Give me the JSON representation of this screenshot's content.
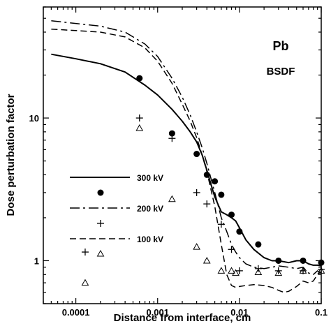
{
  "chart_data": {
    "type": "line",
    "xlabel": "Distance from interface, cm",
    "ylabel": "Dose perturbation factor",
    "xscale": "log",
    "yscale": "log",
    "xlim": [
      4e-05,
      0.1
    ],
    "ylim": [
      0.5,
      60
    ],
    "x_ticks": [
      0.0001,
      0.001,
      0.01,
      0.1
    ],
    "x_tick_labels": [
      "0.0001",
      "0.001",
      "0.01",
      "0.1"
    ],
    "y_ticks": [
      1,
      10
    ],
    "y_tick_labels": [
      "1",
      "10"
    ],
    "grid": false,
    "legend_position": "left-center",
    "annotations": [
      "Pb",
      "BSDF"
    ],
    "series": [
      {
        "name": "300 kV",
        "kind": "line",
        "style": "solid",
        "x": [
          5e-05,
          0.0001,
          0.0002,
          0.0004,
          0.0007,
          0.001,
          0.0015,
          0.002,
          0.0025,
          0.003,
          0.0035,
          0.004,
          0.0045,
          0.005,
          0.006,
          0.007,
          0.008,
          0.009,
          0.01,
          0.012,
          0.015,
          0.02,
          0.025,
          0.03,
          0.04,
          0.05,
          0.06,
          0.07,
          0.08,
          0.09,
          0.1
        ],
        "values": [
          28,
          26,
          24,
          21,
          17,
          14.5,
          11.5,
          9.5,
          8,
          6.8,
          5.5,
          4.3,
          3.4,
          2.8,
          2.2,
          2.1,
          2.0,
          1.9,
          1.7,
          1.4,
          1.2,
          1.05,
          1.0,
          1.0,
          0.97,
          1.0,
          1.0,
          0.95,
          0.93,
          0.93,
          0.92
        ]
      },
      {
        "name": "300 kV",
        "kind": "points",
        "marker": "filled-circle",
        "x": [
          0.0006,
          0.0015,
          0.003,
          0.004,
          0.005,
          0.006,
          0.008,
          0.01,
          0.017,
          0.03,
          0.06,
          0.1
        ],
        "values": [
          19,
          7.8,
          5.6,
          4.0,
          3.6,
          2.9,
          2.1,
          1.6,
          1.3,
          1.0,
          1.0,
          0.97
        ]
      },
      {
        "name": "200 kV",
        "kind": "line",
        "style": "dash-dot",
        "x": [
          5e-05,
          0.0001,
          0.0002,
          0.0004,
          0.0007,
          0.001,
          0.0015,
          0.002,
          0.0025,
          0.003,
          0.0035,
          0.004,
          0.005,
          0.006,
          0.007,
          0.008,
          0.009,
          0.01,
          0.012,
          0.015,
          0.02,
          0.025,
          0.03,
          0.04,
          0.05,
          0.06,
          0.07,
          0.08,
          0.09,
          0.1
        ],
        "values": [
          48,
          46,
          44,
          40,
          33,
          27,
          19,
          14,
          10.5,
          8,
          6.2,
          4.8,
          3.0,
          2.0,
          1.6,
          1.3,
          1.15,
          1.05,
          0.95,
          0.9,
          0.88,
          0.9,
          0.92,
          0.9,
          0.88,
          0.9,
          0.82,
          0.8,
          0.85,
          0.82
        ]
      },
      {
        "name": "200 kV",
        "kind": "points",
        "marker": "plus",
        "x": [
          0.00013,
          0.0006,
          0.0015,
          0.003,
          0.004,
          0.006,
          0.008,
          0.01,
          0.017,
          0.03,
          0.06,
          0.1
        ],
        "values": [
          1.15,
          10.0,
          7.2,
          3.0,
          2.5,
          1.8,
          1.2,
          0.85,
          0.88,
          0.85,
          0.85,
          0.87
        ]
      },
      {
        "name": "100 kV",
        "kind": "line",
        "style": "dashed",
        "x": [
          5e-05,
          0.0001,
          0.0002,
          0.0004,
          0.0007,
          0.001,
          0.0015,
          0.002,
          0.0025,
          0.003,
          0.0035,
          0.004,
          0.005,
          0.006,
          0.007,
          0.008,
          0.009,
          0.01,
          0.012,
          0.015,
          0.02,
          0.025,
          0.03,
          0.035,
          0.04,
          0.05,
          0.06,
          0.07,
          0.08,
          0.09,
          0.1
        ],
        "values": [
          42,
          41,
          40,
          37,
          31,
          25,
          17.5,
          12.5,
          9.5,
          7.3,
          5.5,
          4.2,
          2.4,
          1.3,
          0.8,
          0.67,
          0.65,
          0.66,
          0.67,
          0.68,
          0.67,
          0.65,
          0.62,
          0.6,
          0.61,
          0.66,
          0.72,
          0.7,
          0.72,
          0.8,
          0.84
        ]
      },
      {
        "name": "100 kV",
        "kind": "points",
        "marker": "open-triangle",
        "x": [
          0.00013,
          0.0006,
          0.0015,
          0.003,
          0.004,
          0.006,
          0.008,
          0.009,
          0.017,
          0.03,
          0.06,
          0.1
        ],
        "values": [
          0.7,
          8.5,
          2.7,
          1.25,
          1.0,
          0.85,
          0.85,
          0.82,
          0.83,
          0.82,
          0.85,
          0.85
        ]
      }
    ]
  }
}
